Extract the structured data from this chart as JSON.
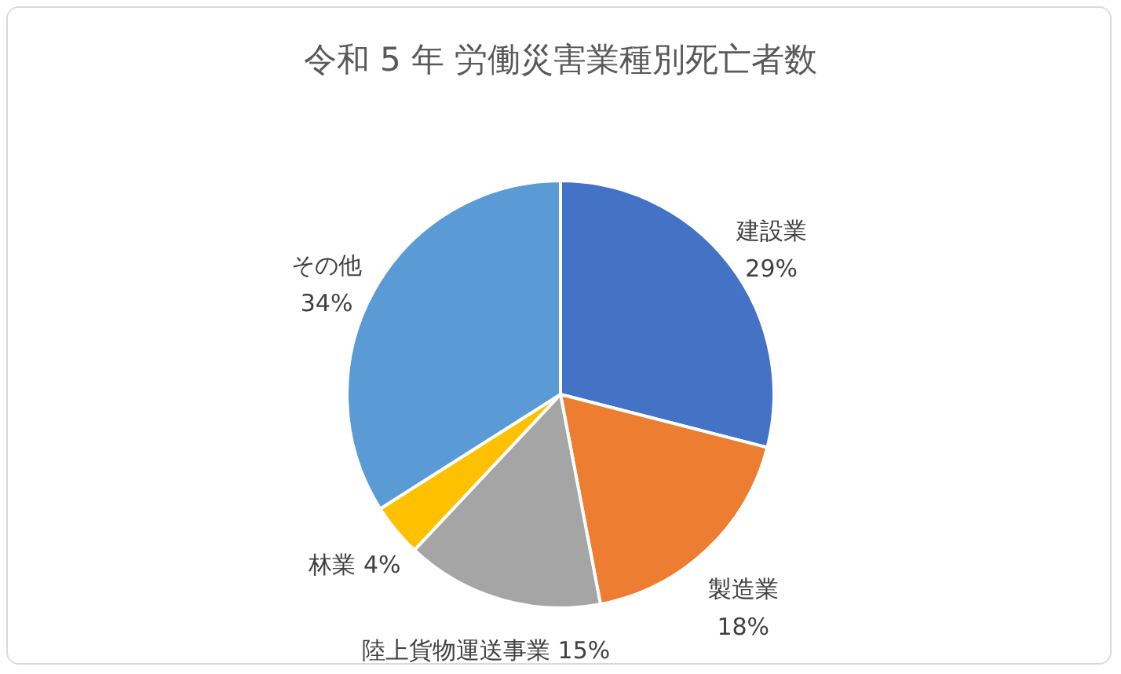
{
  "chart_data": {
    "type": "pie",
    "title": "令和 5 年 労働災害業種別死亡者数",
    "categories": [
      "建設業",
      "製造業",
      "陸上貨物運送事業",
      "林業",
      "その他"
    ],
    "values": [
      29,
      18,
      15,
      4,
      34
    ],
    "colors": [
      "#4472c4",
      "#ed7d31",
      "#a5a5a5",
      "#ffc000",
      "#5b9bd5"
    ],
    "value_labels": [
      "29%",
      "18%",
      "15%",
      "4%",
      "34%"
    ],
    "legend": false
  }
}
